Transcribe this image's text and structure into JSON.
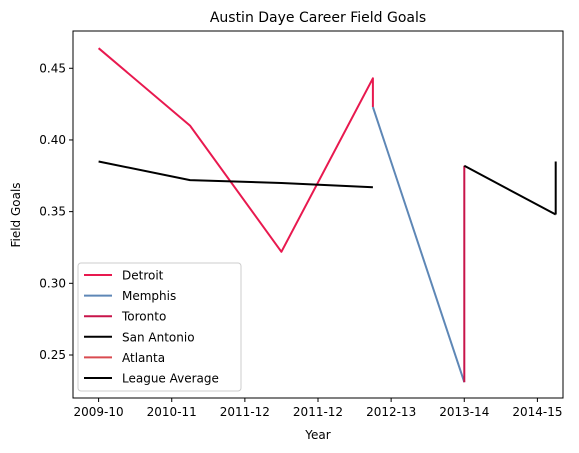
{
  "chart_data": {
    "type": "line",
    "title": "Austin Daye Career Field Goals",
    "xlabel": "Year",
    "ylabel": "Field Goals",
    "x_ticks": [
      {
        "pos": 0,
        "label": "2009-10"
      },
      {
        "pos": 1,
        "label": "2010-11"
      },
      {
        "pos": 2,
        "label": "2011-12"
      },
      {
        "pos": 3,
        "label": "2011-12"
      },
      {
        "pos": 4,
        "label": "2012-13"
      },
      {
        "pos": 5,
        "label": "2013-14"
      },
      {
        "pos": 6,
        "label": "2014-15"
      }
    ],
    "y_ticks": [
      0.25,
      0.3,
      0.35,
      0.4,
      0.45
    ],
    "xlim": [
      -0.35,
      6.35
    ],
    "ylim": [
      0.22,
      0.476
    ],
    "series": [
      {
        "name": "Detroit",
        "color": "#e8194f",
        "points": [
          [
            0,
            0.464
          ],
          [
            1.25,
            0.41
          ],
          [
            2.5,
            0.322
          ],
          [
            3.75,
            0.443
          ],
          [
            3.75,
            0.423
          ]
        ]
      },
      {
        "name": "Memphis",
        "color": "#5e87b6",
        "points": [
          [
            3.75,
            0.423
          ],
          [
            5.0,
            0.231
          ]
        ]
      },
      {
        "name": "Toronto",
        "color": "#c8144a",
        "points": [
          [
            5.0,
            0.231
          ],
          [
            5.0,
            0.382
          ]
        ]
      },
      {
        "name": "San Antonio",
        "color": "#000000",
        "points": [
          [
            5.0,
            0.382
          ],
          [
            6.25,
            0.348
          ]
        ]
      },
      {
        "name": "Atlanta",
        "color": "#d94b50",
        "points": []
      },
      {
        "name": "League Average",
        "color": "#000000",
        "points": [
          [
            0,
            0.385
          ],
          [
            1.25,
            0.372
          ],
          [
            2.5,
            0.37
          ],
          [
            3.75,
            0.367
          ],
          [
            6.25,
            0.348
          ],
          [
            6.25,
            0.385
          ]
        ],
        "breaks_after": [
          3
        ]
      }
    ],
    "legend_position": "lower-left"
  }
}
